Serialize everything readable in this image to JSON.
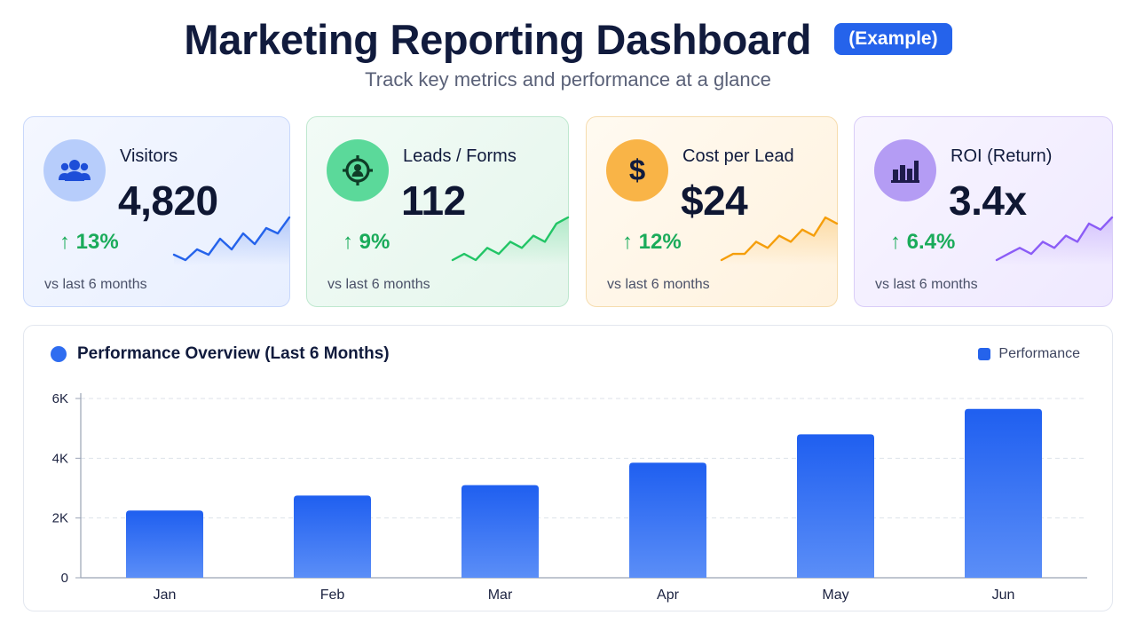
{
  "header": {
    "title": "Marketing Reporting Dashboard",
    "badge": "(Example)",
    "subtitle": "Track key metrics and performance at a glance"
  },
  "kpis": [
    {
      "label": "Visitors",
      "value": "4,820",
      "change": "↑ 13%",
      "note": "vs last 6 months",
      "icon": "users-icon",
      "color": "#2563eb",
      "spark": [
        3,
        2,
        4,
        3,
        6,
        4,
        7,
        5,
        8,
        7,
        10
      ]
    },
    {
      "label": "Leads / Forms",
      "value": "112",
      "change": "↑ 9%",
      "note": "vs last 6 months",
      "icon": "target-icon",
      "color": "#22c566",
      "spark": [
        2,
        3,
        2,
        4,
        3,
        5,
        4,
        6,
        5,
        8,
        9
      ]
    },
    {
      "label": "Cost per Lead",
      "value": "$24",
      "change": "↑ 12%",
      "note": "vs last 6 months",
      "icon": "dollar-icon",
      "color": "#f59e0b",
      "spark": [
        2,
        3,
        3,
        5,
        4,
        6,
        5,
        7,
        6,
        9,
        8
      ]
    },
    {
      "label": "ROI (Return)",
      "value": "3.4x",
      "change": "↑ 6.4%",
      "note": "vs last 6 months",
      "icon": "bar-chart-icon",
      "color": "#8b5cf6",
      "spark": [
        1,
        2,
        3,
        2,
        4,
        3,
        5,
        4,
        7,
        6,
        8
      ]
    }
  ],
  "chart_data": {
    "type": "bar",
    "title": "Performance Overview (Last 6 Months)",
    "categories": [
      "Jan",
      "Feb",
      "Mar",
      "Apr",
      "May",
      "Jun"
    ],
    "series": [
      {
        "name": "Performance",
        "values": [
          2250,
          2750,
          3100,
          3850,
          4800,
          5650
        ]
      }
    ],
    "ylim": [
      0,
      6000
    ],
    "yticks": [
      {
        "value": 0,
        "label": "0"
      },
      {
        "value": 2000,
        "label": "2K"
      },
      {
        "value": 4000,
        "label": "4K"
      },
      {
        "value": 6000,
        "label": "6K"
      }
    ],
    "grid": true,
    "legend_position": "top-right",
    "bar_color": "#2563eb"
  }
}
